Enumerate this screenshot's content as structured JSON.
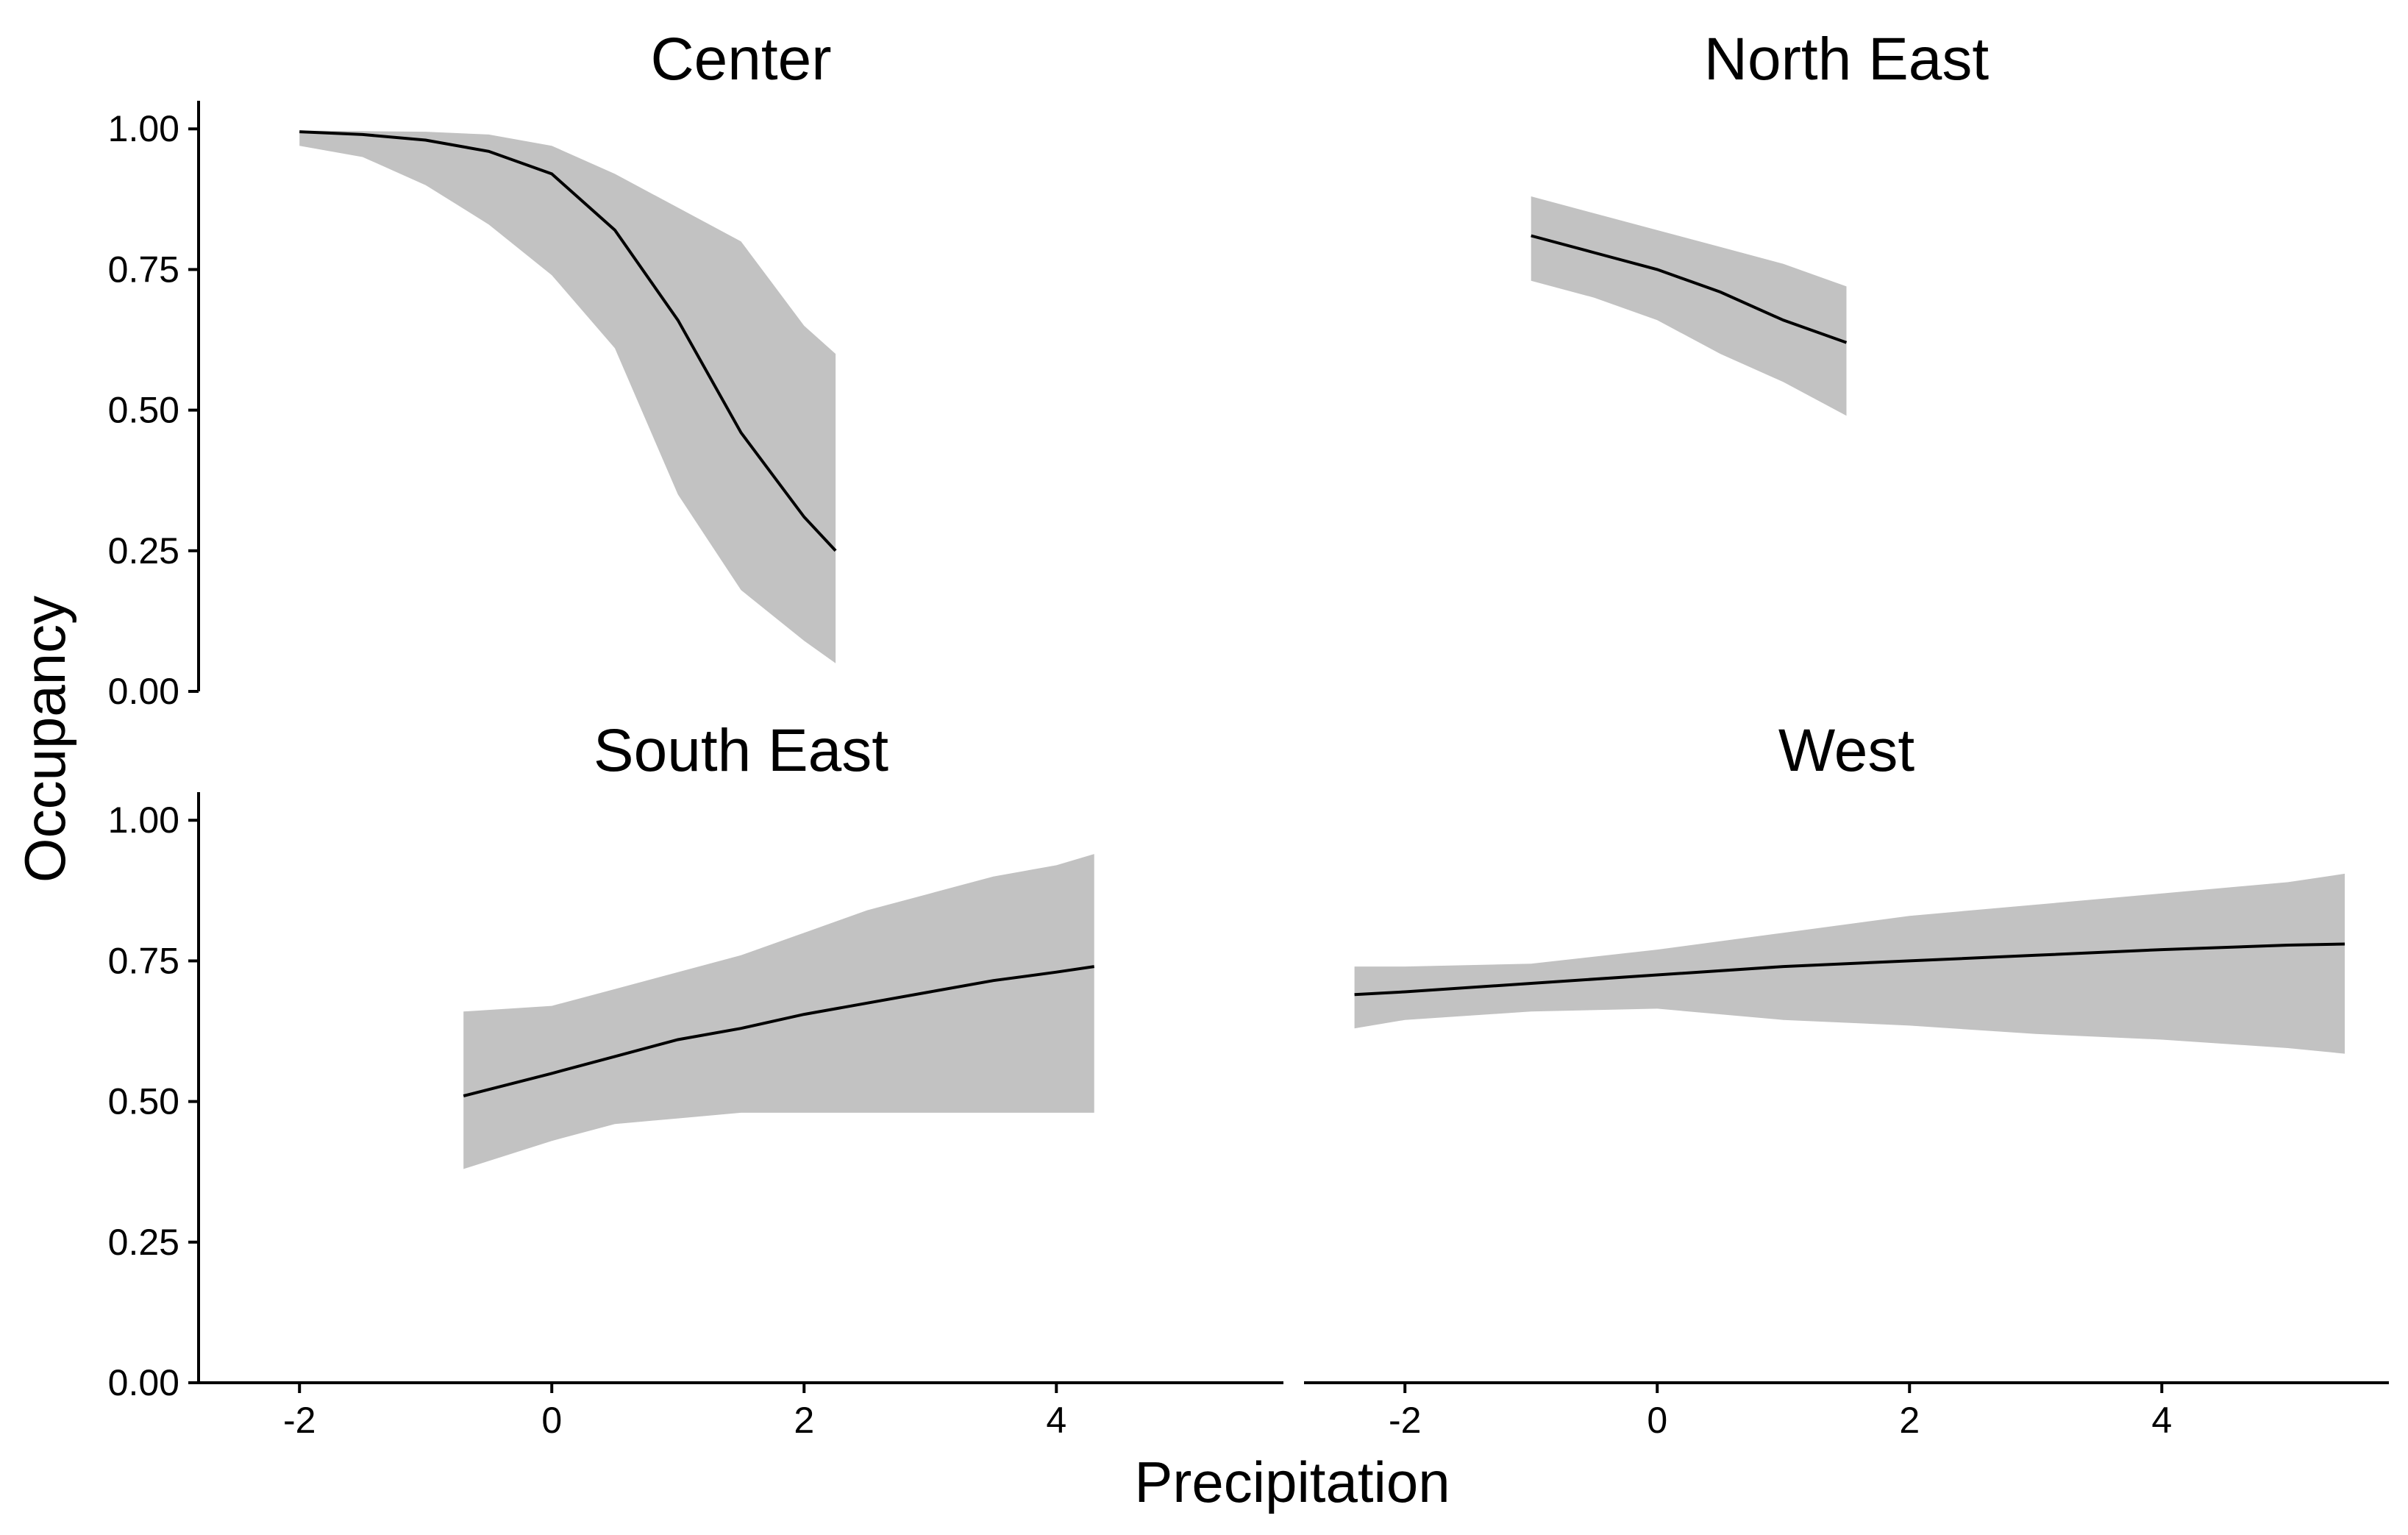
{
  "chart_data": {
    "type": "line",
    "layout": "facet-grid-2x2",
    "xlabel": "Precipitation",
    "ylabel": "Occupancy",
    "xlim": [
      -2.8,
      5.8
    ],
    "ylim": [
      0,
      1.05
    ],
    "x_ticks": [
      -2,
      0,
      2,
      4
    ],
    "x_tick_labels": [
      "-2",
      "0",
      "2",
      "4"
    ],
    "y_ticks": [
      0,
      0.25,
      0.5,
      0.75,
      1.0
    ],
    "y_tick_labels": [
      "0.00",
      "0.25",
      "0.50",
      "0.75",
      "1.00"
    ],
    "grid": false,
    "legend": "none",
    "band_color": "#c2c2c2",
    "line_color": "#000000",
    "panels": [
      {
        "title": "Center",
        "x": [
          -2.0,
          -1.5,
          -1.0,
          -0.5,
          0.0,
          0.5,
          1.0,
          1.5,
          2.0,
          2.25
        ],
        "y": [
          0.995,
          0.99,
          0.98,
          0.96,
          0.92,
          0.82,
          0.66,
          0.46,
          0.31,
          0.25
        ],
        "lower": [
          0.97,
          0.95,
          0.9,
          0.83,
          0.74,
          0.61,
          0.35,
          0.18,
          0.09,
          0.05
        ],
        "upper": [
          0.997,
          0.996,
          0.995,
          0.99,
          0.97,
          0.92,
          0.86,
          0.8,
          0.65,
          0.6
        ]
      },
      {
        "title": "North East",
        "x": [
          -1.0,
          -0.5,
          0.0,
          0.5,
          1.0,
          1.5
        ],
        "y": [
          0.81,
          0.78,
          0.75,
          0.71,
          0.66,
          0.62
        ],
        "lower": [
          0.73,
          0.7,
          0.66,
          0.6,
          0.55,
          0.49
        ],
        "upper": [
          0.88,
          0.85,
          0.82,
          0.79,
          0.76,
          0.72
        ]
      },
      {
        "title": "South East",
        "x": [
          -0.7,
          0.0,
          0.5,
          1.0,
          1.5,
          2.0,
          2.5,
          3.0,
          3.5,
          4.0,
          4.3
        ],
        "y": [
          0.51,
          0.55,
          0.58,
          0.61,
          0.63,
          0.655,
          0.675,
          0.695,
          0.715,
          0.73,
          0.74
        ],
        "lower": [
          0.38,
          0.43,
          0.46,
          0.47,
          0.48,
          0.48,
          0.48,
          0.48,
          0.48,
          0.48,
          0.48
        ],
        "upper": [
          0.66,
          0.67,
          0.7,
          0.73,
          0.76,
          0.8,
          0.84,
          0.87,
          0.9,
          0.92,
          0.94
        ]
      },
      {
        "title": "West",
        "x": [
          -2.4,
          -2.0,
          -1.0,
          0.0,
          1.0,
          2.0,
          3.0,
          4.0,
          5.0,
          5.45
        ],
        "y": [
          0.69,
          0.695,
          0.71,
          0.725,
          0.74,
          0.75,
          0.76,
          0.77,
          0.778,
          0.78
        ],
        "lower": [
          0.63,
          0.645,
          0.66,
          0.665,
          0.645,
          0.635,
          0.62,
          0.61,
          0.595,
          0.585
        ],
        "upper": [
          0.74,
          0.74,
          0.745,
          0.77,
          0.8,
          0.83,
          0.85,
          0.87,
          0.89,
          0.905
        ]
      }
    ]
  }
}
